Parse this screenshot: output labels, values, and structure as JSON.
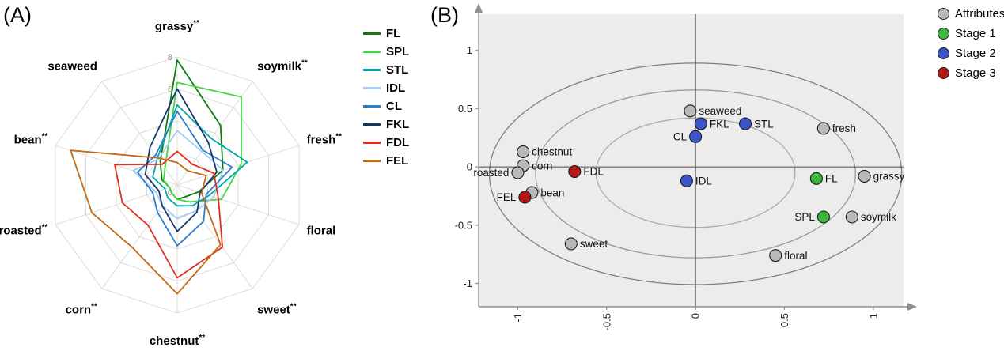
{
  "figure": {
    "panelA_label": "(A)",
    "panelB_label": "(B)"
  },
  "chart_data": [
    {
      "id": "sensory-radar",
      "panel": "A",
      "type": "radar",
      "rmax": 8,
      "ring_levels": [
        2,
        4,
        6,
        8
      ],
      "radial_tick_labels": [
        {
          "label": "0",
          "value": 0
        },
        {
          "label": "6",
          "value": 6
        },
        {
          "label": "8",
          "value": 8
        }
      ],
      "axes": [
        {
          "label": "grassy",
          "sig": "**"
        },
        {
          "label": "soymilk",
          "sig": "**"
        },
        {
          "label": "fresh",
          "sig": "**"
        },
        {
          "label": "floral",
          "sig": ""
        },
        {
          "label": "sweet",
          "sig": "**"
        },
        {
          "label": "chestnut",
          "sig": "**"
        },
        {
          "label": "corn",
          "sig": "**"
        },
        {
          "label": "roasted",
          "sig": "**"
        },
        {
          "label": "bean",
          "sig": "**"
        },
        {
          "label": "seaweed",
          "sig": ""
        }
      ],
      "series": [
        {
          "name": "FL",
          "color": "#0f7d0f",
          "values": [
            7.8,
            4.6,
            3.0,
            1.4,
            0.9,
            0.9,
            0.6,
            0.5,
            1.0,
            1.8
          ]
        },
        {
          "name": "SPL",
          "color": "#45d445",
          "values": [
            6.4,
            6.8,
            4.2,
            2.9,
            1.3,
            0.9,
            0.6,
            0.5,
            0.9,
            1.3
          ]
        },
        {
          "name": "STL",
          "color": "#00a8a8",
          "values": [
            5.0,
            3.6,
            4.6,
            2.1,
            1.6,
            1.3,
            1.0,
            0.8,
            1.6,
            2.1
          ]
        },
        {
          "name": "IDL",
          "color": "#a6cdf2",
          "values": [
            3.4,
            2.6,
            3.0,
            2.4,
            2.0,
            2.1,
            1.6,
            1.4,
            2.9,
            2.0
          ]
        },
        {
          "name": "CL",
          "color": "#2b7fd0",
          "values": [
            4.6,
            2.7,
            3.6,
            1.9,
            2.8,
            3.8,
            2.1,
            1.6,
            2.6,
            2.3
          ]
        },
        {
          "name": "FKL",
          "color": "#12386e",
          "values": [
            6.0,
            3.3,
            2.6,
            1.5,
            2.1,
            2.9,
            1.6,
            1.2,
            2.1,
            2.9
          ]
        },
        {
          "name": "FDL",
          "color": "#e03020",
          "values": [
            2.1,
            1.6,
            2.4,
            2.7,
            4.8,
            5.8,
            3.1,
            3.6,
            4.1,
            1.6
          ]
        },
        {
          "name": "FEL",
          "color": "#c26a14",
          "values": [
            1.4,
            1.1,
            1.9,
            1.6,
            4.6,
            6.8,
            4.8,
            5.6,
            7.0,
            2.1
          ]
        }
      ],
      "grid_color": "#dcdcdc"
    },
    {
      "id": "pca-biplot",
      "panel": "B",
      "type": "scatter",
      "xlim": [
        -1.22,
        1.17
      ],
      "ylim": [
        -1.2,
        1.31
      ],
      "xticks": [
        -1,
        -0.5,
        0,
        0.5,
        1
      ],
      "yticks": [
        -1,
        -0.5,
        0,
        0.5,
        1
      ],
      "plot_bg": "#ececec",
      "axis_color": "#8f8f8f",
      "zero_line_color": "#4d4d4d",
      "legend": [
        {
          "name": "Attributes",
          "color": "#b9b9b9"
        },
        {
          "name": "Stage 1",
          "color": "#3db83d"
        },
        {
          "name": "Stage 2",
          "color": "#3c55c8"
        },
        {
          "name": "Stage 3",
          "color": "#b51717"
        }
      ],
      "ellipses": [
        {
          "cx": 0,
          "cy": -0.06,
          "rx": 1.16,
          "ry": 0.95,
          "stroke": "#7f7f7f"
        },
        {
          "cx": 0,
          "cy": -0.06,
          "rx": 0.9,
          "ry": 0.72,
          "stroke": "#9a9a9a"
        },
        {
          "cx": 0,
          "cy": -0.05,
          "rx": 0.56,
          "ry": 0.47,
          "stroke": "#ababab"
        }
      ],
      "points": [
        {
          "label": "seaweed",
          "group": "Attributes",
          "x": -0.03,
          "y": 0.48,
          "label_side": "right"
        },
        {
          "label": "chestnut",
          "group": "Attributes",
          "x": -0.97,
          "y": 0.13,
          "label_side": "right"
        },
        {
          "label": "corn",
          "group": "Attributes",
          "x": -0.97,
          "y": 0.01,
          "label_side": "right"
        },
        {
          "label": "roasted",
          "group": "Attributes",
          "x": -1.0,
          "y": -0.05,
          "label_side": "left"
        },
        {
          "label": "bean",
          "group": "Attributes",
          "x": -0.92,
          "y": -0.22,
          "label_side": "right"
        },
        {
          "label": "sweet",
          "group": "Attributes",
          "x": -0.7,
          "y": -0.66,
          "label_side": "right"
        },
        {
          "label": "floral",
          "group": "Attributes",
          "x": 0.45,
          "y": -0.76,
          "label_side": "right"
        },
        {
          "label": "soymilk",
          "group": "Attributes",
          "x": 0.88,
          "y": -0.43,
          "label_side": "right"
        },
        {
          "label": "grassy",
          "group": "Attributes",
          "x": 0.95,
          "y": -0.08,
          "label_side": "right"
        },
        {
          "label": "fresh",
          "group": "Attributes",
          "x": 0.72,
          "y": 0.33,
          "label_side": "right"
        },
        {
          "label": "FL",
          "group": "Stage 1",
          "x": 0.68,
          "y": -0.1,
          "label_side": "right"
        },
        {
          "label": "SPL",
          "group": "Stage 1",
          "x": 0.72,
          "y": -0.43,
          "label_side": "left"
        },
        {
          "label": "FKL",
          "group": "Stage 2",
          "x": 0.03,
          "y": 0.37,
          "label_side": "right"
        },
        {
          "label": "STL",
          "group": "Stage 2",
          "x": 0.28,
          "y": 0.37,
          "label_side": "right"
        },
        {
          "label": "CL",
          "group": "Stage 2",
          "x": 0.0,
          "y": 0.26,
          "label_side": "left"
        },
        {
          "label": "IDL",
          "group": "Stage 2",
          "x": -0.05,
          "y": -0.12,
          "label_side": "right"
        },
        {
          "label": "FDL",
          "group": "Stage 3",
          "x": -0.68,
          "y": -0.04,
          "label_side": "right"
        },
        {
          "label": "FEL",
          "group": "Stage 3",
          "x": -0.96,
          "y": -0.26,
          "label_side": "left"
        }
      ]
    }
  ]
}
